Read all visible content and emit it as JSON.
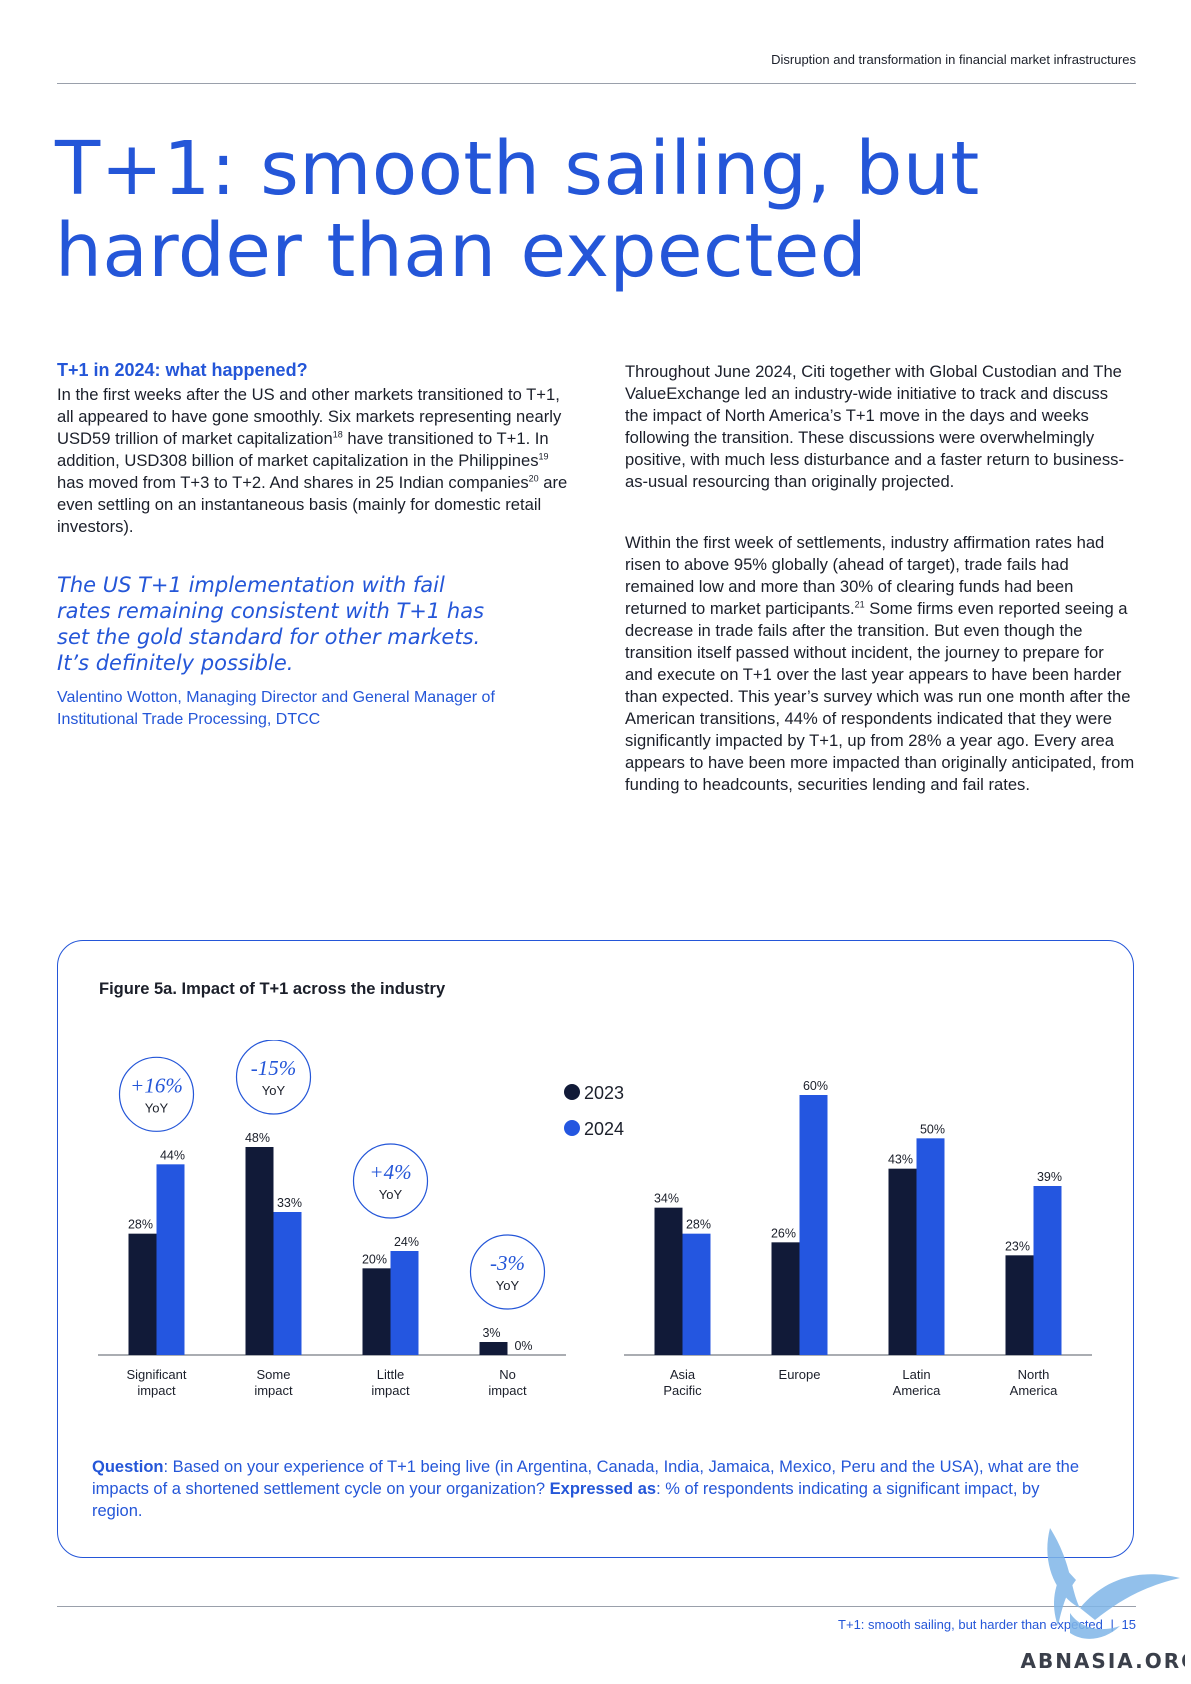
{
  "header": {
    "report_title": "Disruption and transformation in financial market infrastructures"
  },
  "title": {
    "line1": "T+1: smooth sailing, but",
    "line2": "harder than expected"
  },
  "left_column": {
    "heading": "T+1 in 2024: what happened?",
    "p1_a": "In the first weeks after the US and other markets transitioned to T+1, all appeared to have gone smoothly. Six markets representing nearly USD59 trillion of market capitalization",
    "p1_sup1": "18",
    "p1_b": " have transitioned to T+1. In addition, USD308 billion of market capitalization in the Philippines",
    "p1_sup2": "19",
    "p1_c": " has moved from T+3 to T+2. And shares in 25 Indian companies",
    "p1_sup3": "20",
    "p1_d": " are even settling on an instantaneous basis (mainly for domestic retail investors).",
    "quote": "The US T+1 implementation with fail rates remaining consistent with T+1 has set the gold standard for other markets. It’s definitely possible.",
    "attribution": "Valentino Wotton, Managing Director and General Manager of Institutional Trade Processing, DTCC"
  },
  "right_column": {
    "p1": "Throughout June 2024, Citi together with Global Custodian and The ValueExchange led an industry-wide initiative to track and discuss the impact of North America’s T+1 move in the days and weeks following the transition. These discussions were overwhelmingly positive, with much less disturbance and a faster return to business-as-usual resourcing than originally projected.",
    "p2_a": "Within the first week of settlements, industry affirmation rates had risen to above 95% globally (ahead of target), trade fails had remained low and more than 30% of clearing funds had been returned to market participants.",
    "p2_sup": "21",
    "p2_b": " Some firms even reported seeing a decrease in trade fails after the transition. But even though the transition itself passed without incident, the journey to prepare for and execute on T+1 over the last year appears to have been harder than expected. This year’s survey which was run one month after the American transitions, 44% of respondents indicated that they were significantly impacted by T+1, up from 28% a year ago. Every area appears to have been more impacted than originally anticipated, from funding to headcounts, securities lending and fail rates."
  },
  "figure": {
    "title": "Figure 5a. Impact of T+1 across the industry",
    "question_label": "Question",
    "question_text": ": Based on your experience of T+1 being live (in Argentina, Canada, India, Jamaica, Mexico, Peru and the USA), what are the impacts of a shortened settlement cycle on your organization? ",
    "expressed_label": "Expressed as",
    "expressed_text": ": % of respondents indicating a significant impact, by region."
  },
  "chart_data": [
    {
      "type": "bar",
      "categories": [
        "Significant impact",
        "Some impact",
        "Little impact",
        "No impact"
      ],
      "series": [
        {
          "name": "2023",
          "values": [
            28,
            48,
            20,
            3
          ]
        },
        {
          "name": "2024",
          "values": [
            44,
            33,
            24,
            0
          ]
        }
      ],
      "annotations": [
        {
          "category": "Significant impact",
          "change": "+16%",
          "sub": "YoY"
        },
        {
          "category": "Some impact",
          "change": "-15%",
          "sub": "YoY"
        },
        {
          "category": "Little impact",
          "change": "+4%",
          "sub": "YoY"
        },
        {
          "category": "No impact",
          "change": "-3%",
          "sub": "YoY"
        }
      ],
      "value_suffix": "%",
      "ylim": [
        0,
        60
      ],
      "grid": false
    },
    {
      "type": "bar",
      "categories": [
        "Asia Pacific",
        "Europe",
        "Latin America",
        "North America"
      ],
      "series": [
        {
          "name": "2023",
          "values": [
            34,
            26,
            43,
            23
          ]
        },
        {
          "name": "2024",
          "values": [
            28,
            60,
            50,
            39
          ]
        }
      ],
      "value_suffix": "%",
      "ylim": [
        0,
        60
      ],
      "grid": false,
      "legend": "top-left"
    }
  ],
  "colors": {
    "accent": "#2456d8",
    "series_2023": "#111a38",
    "series_2024": "#2456e0",
    "text": "#1b1f2a"
  },
  "footer": {
    "running_title": "T+1: smooth sailing, but harder than expected",
    "separator": "|",
    "page_number": "15"
  },
  "watermark": {
    "text": "ABNASIA.ORG"
  }
}
